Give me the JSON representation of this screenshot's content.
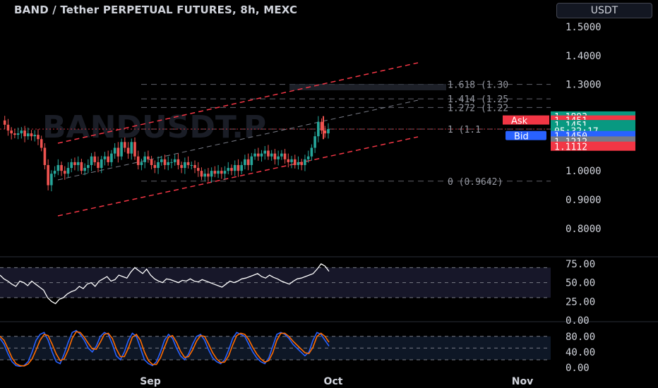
{
  "header": {
    "title": "BAND / Tether PERPETUAL FUTURES, 8h, MEXC",
    "currency": "USDT"
  },
  "colors": {
    "background": "#000000",
    "channel": "#f23645",
    "fib": "#787b86",
    "up": "#26a69a",
    "down": "#ef5350",
    "rsi": "#ffffff",
    "stoch_k": "#2962ff",
    "stoch_d": "#ff6d00",
    "ask": "#f23645",
    "bid": "#2962ff",
    "last": "#089981"
  },
  "chart_data": [
    {
      "type": "candlestick",
      "panel": "price",
      "yticks": [
        "1.5000",
        "1.4000",
        "1.3000",
        "1.0000",
        "0.9000",
        "0.8000"
      ],
      "ylim": [
        0.74,
        1.56
      ],
      "fib_levels": [
        {
          "label": "1.618 (1.30",
          "value": 1.3
        },
        {
          "label": "1.414 (1.25",
          "value": 1.25
        },
        {
          "label": "1.272 (1.22",
          "value": 1.22
        },
        {
          "label": "1 (1.1",
          "value": 1.145
        },
        {
          "label": "0 (0.9642)",
          "value": 0.9642
        }
      ],
      "price_labels": [
        {
          "name": "high",
          "text": "1.1893"
        },
        {
          "name": "ask-label",
          "text": "Ask"
        },
        {
          "name": "ask-price",
          "text": "1.1451"
        },
        {
          "name": "last-price",
          "text": "1.1451"
        },
        {
          "name": "countdown",
          "text": "05:32:17"
        },
        {
          "name": "bid-label",
          "text": "Bid"
        },
        {
          "name": "bid-price",
          "text": "1.1450"
        },
        {
          "name": "mid",
          "text": "1.1212"
        },
        {
          "name": "low",
          "text": "1.1112"
        }
      ],
      "close_series": [
        1.175,
        1.16,
        1.14,
        1.13,
        1.125,
        1.13,
        1.14,
        1.12,
        1.13,
        1.12,
        1.125,
        1.11,
        1.08,
        1.02,
        0.95,
        0.99,
        1.0,
        1.02,
        1.0,
        0.99,
        1.01,
        1.03,
        1.02,
        1.03,
        1.0,
        1.01,
        1.02,
        1.05,
        1.03,
        1.01,
        1.04,
        1.05,
        1.03,
        1.06,
        1.08,
        1.05,
        1.1,
        1.08,
        1.06,
        1.1,
        1.05,
        1.02,
        1.03,
        1.05,
        1.04,
        1.02,
        1.01,
        1.03,
        1.04,
        1.02,
        1.03,
        1.03,
        1.04,
        1.02,
        1.01,
        1.03,
        1.02,
        1.02,
        1.01,
        1.0,
        0.98,
        0.99,
        0.98,
        1.0,
        0.99,
        1.0,
        0.99,
        1.0,
        1.01,
        1.0,
        1.02,
        1.0,
        1.02,
        1.04,
        1.02,
        1.05,
        1.06,
        1.05,
        1.06,
        1.07,
        1.05,
        1.06,
        1.04,
        1.05,
        1.06,
        1.04,
        1.03,
        1.04,
        1.02,
        1.03,
        1.02,
        1.04,
        1.05,
        1.08,
        1.12,
        1.17,
        1.14,
        1.13,
        1.145
      ]
    },
    {
      "type": "line",
      "panel": "rsi",
      "yticks": [
        "75.00",
        "50.00",
        "25.00",
        "0.00"
      ],
      "ylim": [
        0,
        80
      ],
      "band": [
        30,
        70
      ],
      "series": [
        {
          "key": "rsi",
          "values": [
            60,
            55,
            52,
            48,
            45,
            52,
            50,
            46,
            52,
            48,
            44,
            40,
            30,
            25,
            22,
            28,
            30,
            35,
            38,
            40,
            45,
            42,
            48,
            50,
            45,
            52,
            55,
            58,
            52,
            54,
            60,
            58,
            56,
            64,
            70,
            66,
            62,
            68,
            60,
            55,
            52,
            50,
            55,
            54,
            52,
            50,
            53,
            52,
            55,
            52,
            51,
            54,
            52,
            50,
            48,
            46,
            44,
            48,
            52,
            50,
            52,
            55,
            56,
            58,
            60,
            62,
            58,
            56,
            60,
            57,
            55,
            52,
            50,
            48,
            52,
            55,
            56,
            58,
            60,
            62,
            68,
            75,
            72,
            65
          ]
        }
      ]
    },
    {
      "type": "line",
      "panel": "stochastic",
      "yticks": [
        "80.00",
        "40.00",
        "0.00"
      ],
      "ylim": [
        -5,
        100
      ],
      "band": [
        20,
        80
      ],
      "series": [
        {
          "key": "k",
          "values": [
            75,
            60,
            35,
            15,
            5,
            3,
            5,
            15,
            40,
            70,
            85,
            90,
            70,
            40,
            15,
            10,
            35,
            65,
            90,
            95,
            85,
            70,
            50,
            40,
            55,
            80,
            90,
            85,
            60,
            30,
            20,
            40,
            70,
            88,
            80,
            50,
            20,
            10,
            5,
            15,
            40,
            70,
            85,
            75,
            50,
            30,
            20,
            35,
            60,
            80,
            85,
            70,
            45,
            25,
            15,
            10,
            20,
            45,
            75,
            90,
            85,
            80,
            60,
            40,
            25,
            15,
            10,
            25,
            55,
            85,
            90,
            85,
            75,
            60,
            50,
            40,
            30,
            40,
            70,
            90,
            85,
            70,
            55
          ]
        },
        {
          "key": "d",
          "values": [
            80,
            70,
            48,
            25,
            10,
            5,
            4,
            9,
            22,
            45,
            70,
            85,
            82,
            60,
            35,
            18,
            22,
            45,
            75,
            92,
            90,
            78,
            62,
            48,
            47,
            65,
            85,
            88,
            75,
            48,
            28,
            28,
            50,
            78,
            85,
            70,
            40,
            18,
            8,
            8,
            25,
            52,
            78,
            82,
            65,
            42,
            26,
            28,
            45,
            68,
            82,
            80,
            60,
            38,
            22,
            13,
            14,
            30,
            58,
            82,
            88,
            85,
            72,
            52,
            35,
            22,
            14,
            18,
            38,
            70,
            88,
            88,
            80,
            68,
            58,
            48,
            38,
            36,
            52,
            80,
            88,
            80,
            65
          ]
        }
      ]
    },
    {
      "type": "axis",
      "xticks": [
        {
          "label": "Sep",
          "x_index": 0
        },
        {
          "label": "Oct",
          "x_index": 1
        },
        {
          "label": "Nov",
          "x_index": 2
        }
      ]
    }
  ]
}
